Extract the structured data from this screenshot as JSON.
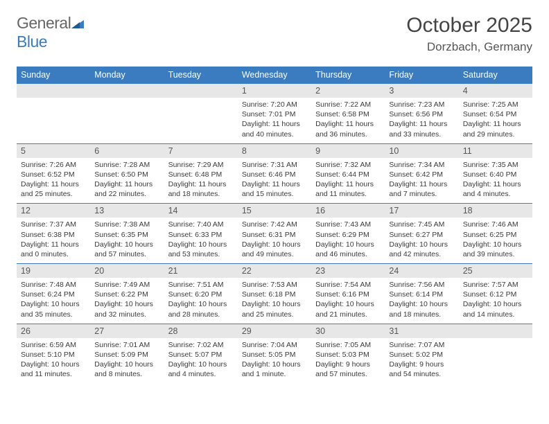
{
  "brand": {
    "part1": "General",
    "part2": "Blue"
  },
  "title": "October 2025",
  "location": "Dorzbach, Germany",
  "colors": {
    "header_bg": "#3b7bbf",
    "daynum_bg": "#e7e7e7",
    "row_border": "#3b7bbf",
    "text": "#3a3a3a"
  },
  "day_labels": [
    "Sunday",
    "Monday",
    "Tuesday",
    "Wednesday",
    "Thursday",
    "Friday",
    "Saturday"
  ],
  "weeks": [
    {
      "nums": [
        "",
        "",
        "",
        "1",
        "2",
        "3",
        "4"
      ],
      "cells": [
        null,
        null,
        null,
        {
          "sr": "7:20 AM",
          "ss": "7:01 PM",
          "dl": "11 hours and 40 minutes."
        },
        {
          "sr": "7:22 AM",
          "ss": "6:58 PM",
          "dl": "11 hours and 36 minutes."
        },
        {
          "sr": "7:23 AM",
          "ss": "6:56 PM",
          "dl": "11 hours and 33 minutes."
        },
        {
          "sr": "7:25 AM",
          "ss": "6:54 PM",
          "dl": "11 hours and 29 minutes."
        }
      ]
    },
    {
      "nums": [
        "5",
        "6",
        "7",
        "8",
        "9",
        "10",
        "11"
      ],
      "cells": [
        {
          "sr": "7:26 AM",
          "ss": "6:52 PM",
          "dl": "11 hours and 25 minutes."
        },
        {
          "sr": "7:28 AM",
          "ss": "6:50 PM",
          "dl": "11 hours and 22 minutes."
        },
        {
          "sr": "7:29 AM",
          "ss": "6:48 PM",
          "dl": "11 hours and 18 minutes."
        },
        {
          "sr": "7:31 AM",
          "ss": "6:46 PM",
          "dl": "11 hours and 15 minutes."
        },
        {
          "sr": "7:32 AM",
          "ss": "6:44 PM",
          "dl": "11 hours and 11 minutes."
        },
        {
          "sr": "7:34 AM",
          "ss": "6:42 PM",
          "dl": "11 hours and 7 minutes."
        },
        {
          "sr": "7:35 AM",
          "ss": "6:40 PM",
          "dl": "11 hours and 4 minutes."
        }
      ]
    },
    {
      "nums": [
        "12",
        "13",
        "14",
        "15",
        "16",
        "17",
        "18"
      ],
      "cells": [
        {
          "sr": "7:37 AM",
          "ss": "6:38 PM",
          "dl": "11 hours and 0 minutes."
        },
        {
          "sr": "7:38 AM",
          "ss": "6:35 PM",
          "dl": "10 hours and 57 minutes."
        },
        {
          "sr": "7:40 AM",
          "ss": "6:33 PM",
          "dl": "10 hours and 53 minutes."
        },
        {
          "sr": "7:42 AM",
          "ss": "6:31 PM",
          "dl": "10 hours and 49 minutes."
        },
        {
          "sr": "7:43 AM",
          "ss": "6:29 PM",
          "dl": "10 hours and 46 minutes."
        },
        {
          "sr": "7:45 AM",
          "ss": "6:27 PM",
          "dl": "10 hours and 42 minutes."
        },
        {
          "sr": "7:46 AM",
          "ss": "6:25 PM",
          "dl": "10 hours and 39 minutes."
        }
      ]
    },
    {
      "nums": [
        "19",
        "20",
        "21",
        "22",
        "23",
        "24",
        "25"
      ],
      "cells": [
        {
          "sr": "7:48 AM",
          "ss": "6:24 PM",
          "dl": "10 hours and 35 minutes."
        },
        {
          "sr": "7:49 AM",
          "ss": "6:22 PM",
          "dl": "10 hours and 32 minutes."
        },
        {
          "sr": "7:51 AM",
          "ss": "6:20 PM",
          "dl": "10 hours and 28 minutes."
        },
        {
          "sr": "7:53 AM",
          "ss": "6:18 PM",
          "dl": "10 hours and 25 minutes."
        },
        {
          "sr": "7:54 AM",
          "ss": "6:16 PM",
          "dl": "10 hours and 21 minutes."
        },
        {
          "sr": "7:56 AM",
          "ss": "6:14 PM",
          "dl": "10 hours and 18 minutes."
        },
        {
          "sr": "7:57 AM",
          "ss": "6:12 PM",
          "dl": "10 hours and 14 minutes."
        }
      ]
    },
    {
      "nums": [
        "26",
        "27",
        "28",
        "29",
        "30",
        "31",
        ""
      ],
      "cells": [
        {
          "sr": "6:59 AM",
          "ss": "5:10 PM",
          "dl": "10 hours and 11 minutes."
        },
        {
          "sr": "7:01 AM",
          "ss": "5:09 PM",
          "dl": "10 hours and 8 minutes."
        },
        {
          "sr": "7:02 AM",
          "ss": "5:07 PM",
          "dl": "10 hours and 4 minutes."
        },
        {
          "sr": "7:04 AM",
          "ss": "5:05 PM",
          "dl": "10 hours and 1 minute."
        },
        {
          "sr": "7:05 AM",
          "ss": "5:03 PM",
          "dl": "9 hours and 57 minutes."
        },
        {
          "sr": "7:07 AM",
          "ss": "5:02 PM",
          "dl": "9 hours and 54 minutes."
        },
        null
      ]
    }
  ],
  "labels": {
    "sunrise": "Sunrise:",
    "sunset": "Sunset:",
    "daylight": "Daylight:"
  }
}
